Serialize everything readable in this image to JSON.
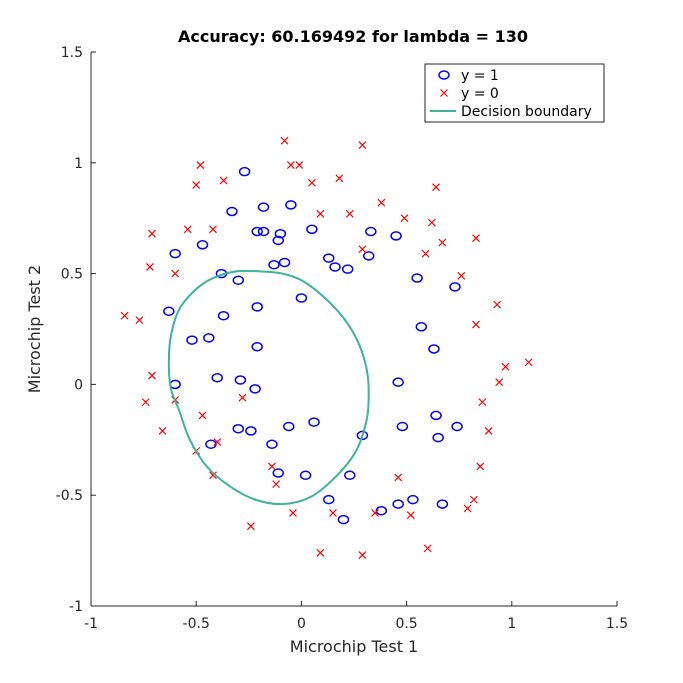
{
  "chart_data": {
    "type": "scatter",
    "title": "Accuracy: 60.169492 for lambda = 130",
    "xlabel": "Microchip Test 1",
    "ylabel": "Microchip Test 2",
    "xlim": [
      -1,
      1.5
    ],
    "ylim": [
      -1,
      1.5
    ],
    "xticks": [
      -1,
      -0.5,
      0,
      0.5,
      1,
      1.5
    ],
    "xtick_labels": [
      "-1",
      "-0.5",
      "0",
      "0.5",
      "1",
      "1.5"
    ],
    "yticks": [
      -1,
      -0.5,
      0,
      0.5,
      1,
      1.5
    ],
    "ytick_labels": [
      "-1",
      "-0.5",
      "0",
      "0.5",
      "1",
      "1.5"
    ],
    "grid": false,
    "legend_position": "top-right",
    "colors": {
      "positive": "#0000ff",
      "negative": "#ff0000",
      "boundary": "#3cb39b"
    },
    "series": [
      {
        "name": "y = 1",
        "marker": "circle",
        "x": [
          -0.27,
          -0.33,
          -0.21,
          -0.18,
          -0.1,
          -0.05,
          -0.18,
          -0.11,
          0.05,
          -0.6,
          -0.47,
          -0.38,
          -0.3,
          -0.13,
          -0.08,
          0.0,
          -0.21,
          -0.63,
          -0.37,
          -0.52,
          -0.44,
          -0.21,
          0.13,
          0.16,
          0.22,
          0.32,
          0.33,
          0.45,
          0.55,
          0.73,
          0.57,
          0.63,
          -0.6,
          -0.4,
          -0.29,
          -0.22,
          0.46,
          -0.3,
          -0.24,
          -0.14,
          -0.06,
          0.06,
          0.29,
          0.48,
          0.64,
          0.65,
          0.74,
          -0.43,
          -0.11,
          0.02,
          0.23,
          0.13,
          0.2,
          0.38,
          0.46,
          0.53,
          0.67
        ],
        "y": [
          0.96,
          0.78,
          0.69,
          0.69,
          0.68,
          0.81,
          0.8,
          0.65,
          0.7,
          0.59,
          0.63,
          0.5,
          0.47,
          0.54,
          0.55,
          0.39,
          0.35,
          0.33,
          0.31,
          0.2,
          0.21,
          0.17,
          0.57,
          0.53,
          0.52,
          0.58,
          0.69,
          0.67,
          0.48,
          0.44,
          0.26,
          0.16,
          0.0,
          0.03,
          0.02,
          -0.02,
          0.01,
          -0.2,
          -0.21,
          -0.27,
          -0.19,
          -0.17,
          -0.23,
          -0.19,
          -0.14,
          -0.24,
          -0.19,
          -0.27,
          -0.4,
          -0.41,
          -0.41,
          -0.52,
          -0.61,
          -0.57,
          -0.54,
          -0.52,
          -0.54
        ]
      },
      {
        "name": "y = 0",
        "marker": "x",
        "x": [
          -0.08,
          0.29,
          -0.48,
          -0.5,
          -0.37,
          -0.05,
          -0.01,
          0.05,
          0.18,
          0.38,
          0.49,
          0.64,
          -0.71,
          -0.54,
          -0.42,
          0.09,
          0.23,
          0.62,
          0.67,
          0.83,
          -0.72,
          -0.6,
          0.29,
          0.59,
          0.76,
          -0.84,
          -0.77,
          0.93,
          0.83,
          1.08,
          0.97,
          0.94,
          -0.71,
          -0.6,
          -0.28,
          -0.74,
          -0.66,
          -0.47,
          -0.4,
          0.86,
          -0.5,
          0.89,
          -0.14,
          -0.42,
          -0.12,
          0.85,
          0.46,
          -0.04,
          0.15,
          0.35,
          0.52,
          0.82,
          0.79,
          -0.24,
          0.09,
          0.29,
          0.6
        ],
        "y": [
          1.1,
          1.08,
          0.99,
          0.9,
          0.92,
          0.99,
          0.99,
          0.91,
          0.93,
          0.82,
          0.75,
          0.89,
          0.68,
          0.7,
          0.7,
          0.77,
          0.77,
          0.73,
          0.64,
          0.66,
          0.53,
          0.5,
          0.61,
          0.59,
          0.49,
          0.31,
          0.29,
          0.36,
          0.27,
          0.1,
          0.08,
          0.01,
          0.04,
          -0.07,
          -0.06,
          -0.08,
          -0.21,
          -0.14,
          -0.26,
          -0.08,
          -0.3,
          -0.21,
          -0.37,
          -0.41,
          -0.45,
          -0.37,
          -0.42,
          -0.58,
          -0.58,
          -0.58,
          -0.59,
          -0.52,
          -0.56,
          -0.64,
          -0.76,
          -0.77,
          -0.74
        ]
      },
      {
        "name": "Decision boundary",
        "type": "line",
        "x": [
          -0.63,
          -0.62,
          -0.58,
          -0.5,
          -0.42,
          -0.31,
          -0.2,
          -0.09,
          0.0,
          0.1,
          0.2,
          0.27,
          0.31,
          0.32,
          0.31,
          0.26,
          0.16,
          0.04,
          -0.09,
          -0.22,
          -0.34,
          -0.45,
          -0.53,
          -0.58,
          -0.62,
          -0.63
        ],
        "y": [
          0.1,
          0.22,
          0.34,
          0.43,
          0.48,
          0.51,
          0.51,
          0.5,
          0.47,
          0.4,
          0.3,
          0.19,
          0.07,
          -0.04,
          -0.16,
          -0.3,
          -0.42,
          -0.51,
          -0.54,
          -0.52,
          -0.46,
          -0.37,
          -0.25,
          -0.12,
          -0.02,
          0.1
        ]
      }
    ]
  }
}
